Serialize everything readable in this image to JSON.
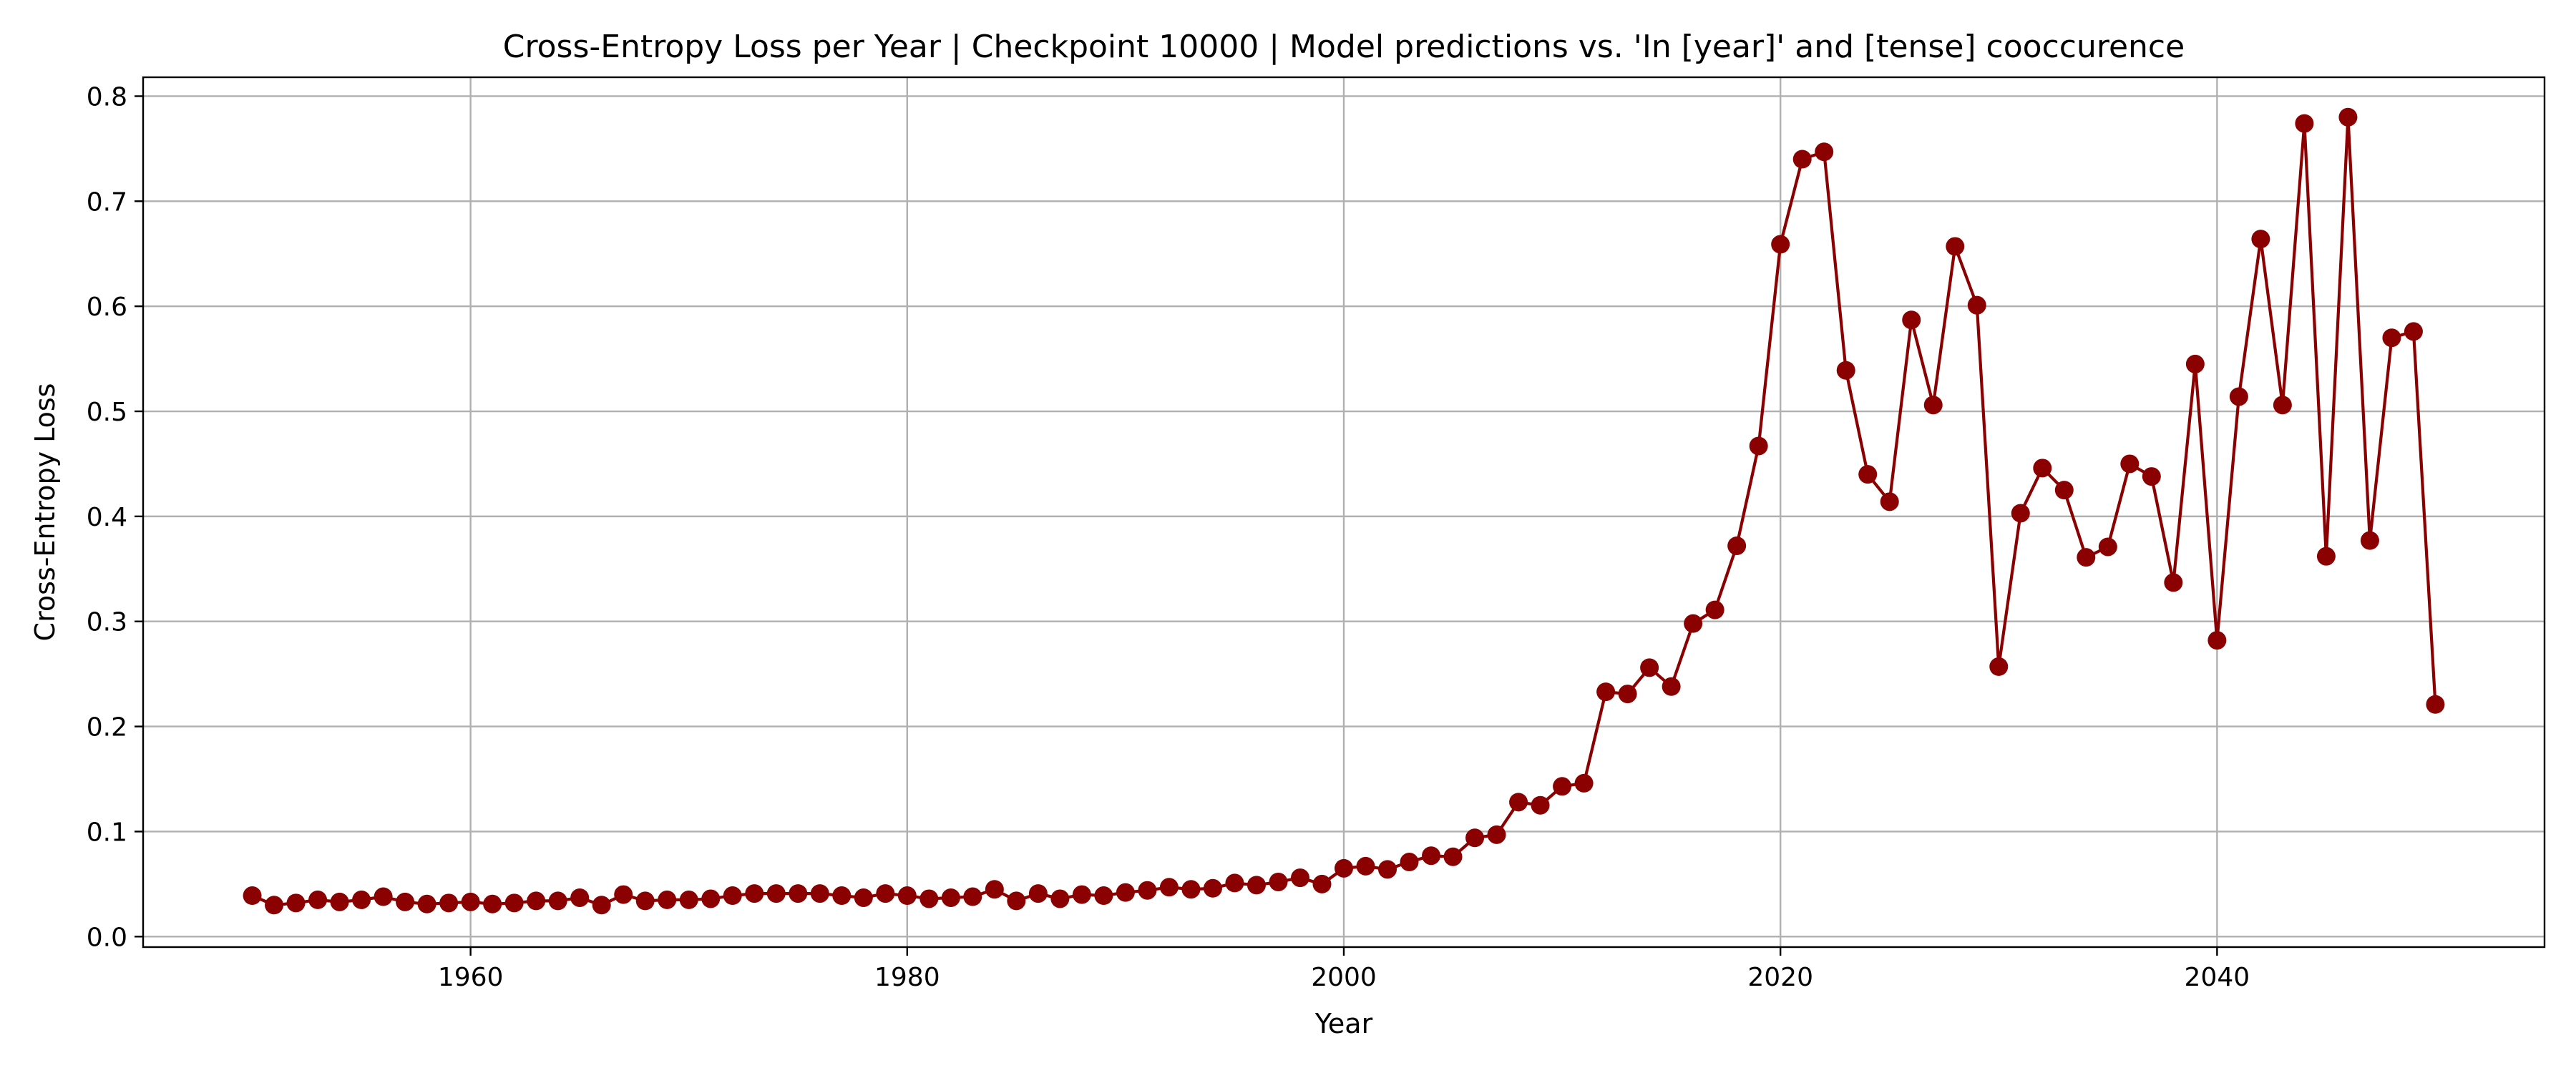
{
  "chart_data": {
    "type": "line",
    "title": "Cross-Entropy Loss per Year | Checkpoint 10000 | Model predictions vs. 'In [year]' and [tense] cooccurence",
    "xlabel": "Year",
    "ylabel": "Cross-Entropy Loss",
    "xlim": [
      1945,
      2055
    ],
    "ylim": [
      -0.01,
      0.818
    ],
    "xticks": [
      1960,
      1980,
      2000,
      2020,
      2040
    ],
    "xtick_labels": [
      "1960",
      "1980",
      "2000",
      "2020",
      "2040"
    ],
    "yticks": [
      0.0,
      0.1,
      0.2,
      0.3,
      0.4,
      0.5,
      0.6,
      0.7,
      0.8
    ],
    "ytick_labels": [
      "0.0",
      "0.1",
      "0.2",
      "0.3",
      "0.4",
      "0.5",
      "0.6",
      "0.7",
      "0.8"
    ],
    "grid": true,
    "marker": "circle",
    "color": "#8b0000",
    "series": [
      {
        "x": [
          1950,
          1951,
          1952,
          1953,
          1954,
          1955,
          1956,
          1957,
          1958,
          1959,
          1960,
          1961,
          1962,
          1963,
          1964,
          1965,
          1966,
          1967,
          1968,
          1969,
          1970,
          1971,
          1972,
          1973,
          1974,
          1975,
          1976,
          1977,
          1978,
          1979,
          1980,
          1981,
          1982,
          1983,
          1984,
          1985,
          1986,
          1987,
          1988,
          1989,
          1990,
          1991,
          1992,
          1993,
          1994,
          1995,
          1996,
          1997,
          1998,
          1999,
          2000,
          2001,
          2002,
          2003,
          2004,
          2005,
          2006,
          2007,
          2008,
          2009,
          2010,
          2011,
          2012,
          2013,
          2014,
          2015,
          2016,
          2017,
          2018,
          2019,
          2020,
          2021,
          2022,
          2023,
          2024,
          2025,
          2026,
          2027,
          2028,
          2029,
          2030,
          2031,
          2032,
          2033,
          2034,
          2035,
          2036,
          2037,
          2038,
          2039,
          2040,
          2041,
          2042,
          2043,
          2044,
          2045,
          2046,
          2047,
          2048,
          2049,
          2050
        ],
        "y": [
          0.039,
          0.03,
          0.032,
          0.035,
          0.033,
          0.035,
          0.038,
          0.033,
          0.031,
          0.032,
          0.033,
          0.031,
          0.032,
          0.034,
          0.034,
          0.037,
          0.03,
          0.04,
          0.034,
          0.035,
          0.035,
          0.036,
          0.039,
          0.041,
          0.041,
          0.041,
          0.041,
          0.039,
          0.037,
          0.041,
          0.039,
          0.036,
          0.037,
          0.038,
          0.045,
          0.034,
          0.041,
          0.036,
          0.04,
          0.039,
          0.042,
          0.044,
          0.047,
          0.045,
          0.046,
          0.051,
          0.049,
          0.052,
          0.056,
          0.05,
          0.065,
          0.067,
          0.064,
          0.071,
          0.077,
          0.076,
          0.094,
          0.097,
          0.128,
          0.125,
          0.143,
          0.146,
          0.233,
          0.231,
          0.256,
          0.238,
          0.298,
          0.311,
          0.372,
          0.467,
          0.659,
          0.74,
          0.747,
          0.539,
          0.44,
          0.414,
          0.587,
          0.506,
          0.657,
          0.601,
          0.257,
          0.403,
          0.446,
          0.425,
          0.361,
          0.371,
          0.45,
          0.438,
          0.337,
          0.545,
          0.282,
          0.514,
          0.664,
          0.506,
          0.774,
          0.362,
          0.78,
          0.377,
          0.57,
          0.576,
          0.221
        ]
      }
    ]
  }
}
